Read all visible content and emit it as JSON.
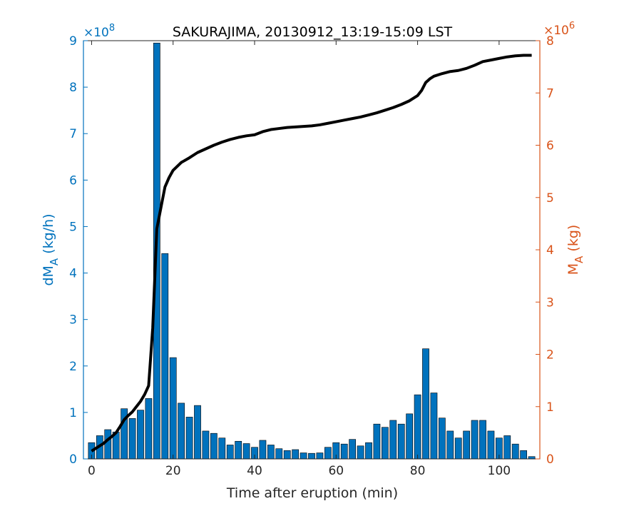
{
  "chart_data": {
    "type": "bar",
    "title": "SAKURAJIMA, 20130912_13:19-15:09 LST",
    "xlabel": "Time after eruption (min)",
    "ylabel_left": "dM_A (kg/h)",
    "ylabel_right": "M_A (kg)",
    "xlim": [
      -2,
      110
    ],
    "xticks": [
      0,
      20,
      40,
      60,
      80,
      100
    ],
    "y_left": {
      "lim": [
        0,
        9
      ],
      "ticks": [
        0,
        1,
        2,
        3,
        4,
        5,
        6,
        7,
        8,
        9
      ],
      "exponent": "8",
      "multiplier_prefix": "×10",
      "color": "#0072BD"
    },
    "y_right": {
      "lim": [
        0,
        8
      ],
      "ticks": [
        0,
        1,
        2,
        3,
        4,
        5,
        6,
        7,
        8
      ],
      "exponent": "6",
      "multiplier_prefix": "×10",
      "color": "#D95319"
    },
    "series": [
      {
        "kind": "bar",
        "axis": "left",
        "color": "#0072BD",
        "edge": "#000000",
        "x": [
          0,
          2,
          4,
          6,
          8,
          10,
          12,
          14,
          16,
          18,
          20,
          22,
          24,
          26,
          28,
          30,
          32,
          34,
          36,
          38,
          40,
          42,
          44,
          46,
          48,
          50,
          52,
          54,
          56,
          58,
          60,
          62,
          64,
          66,
          68,
          70,
          72,
          74,
          76,
          78,
          80,
          82,
          84,
          86,
          88,
          90,
          92,
          94,
          96,
          98,
          100,
          102,
          104,
          106,
          108
        ],
        "values": [
          0.35,
          0.5,
          0.63,
          0.58,
          1.08,
          0.87,
          1.05,
          1.3,
          8.95,
          4.42,
          2.18,
          1.2,
          0.9,
          1.15,
          0.6,
          0.55,
          0.45,
          0.3,
          0.38,
          0.33,
          0.25,
          0.4,
          0.3,
          0.22,
          0.18,
          0.2,
          0.13,
          0.12,
          0.13,
          0.25,
          0.35,
          0.32,
          0.42,
          0.28,
          0.35,
          0.75,
          0.68,
          0.83,
          0.75,
          0.97,
          1.38,
          2.37,
          1.42,
          0.88,
          0.6,
          0.45,
          0.6,
          0.83,
          0.83,
          0.6,
          0.45,
          0.5,
          0.32,
          0.18,
          0.05
        ]
      },
      {
        "kind": "line",
        "axis": "right",
        "color": "#000000",
        "x": [
          0,
          1,
          2,
          3,
          4,
          5,
          6,
          7,
          8,
          9,
          10,
          11,
          12,
          13,
          14,
          15,
          16,
          17,
          18,
          19,
          20,
          22,
          24,
          26,
          28,
          30,
          32,
          34,
          36,
          38,
          40,
          42,
          44,
          46,
          48,
          50,
          52,
          54,
          56,
          58,
          60,
          62,
          64,
          66,
          68,
          70,
          72,
          74,
          76,
          78,
          80,
          81,
          82,
          83,
          84,
          86,
          88,
          90,
          92,
          94,
          96,
          98,
          100,
          102,
          104,
          106,
          108
        ],
        "values": [
          0.15,
          0.2,
          0.25,
          0.3,
          0.37,
          0.43,
          0.5,
          0.62,
          0.75,
          0.83,
          0.9,
          1.0,
          1.1,
          1.23,
          1.4,
          2.5,
          4.4,
          4.8,
          5.2,
          5.38,
          5.52,
          5.67,
          5.76,
          5.86,
          5.93,
          6.0,
          6.06,
          6.11,
          6.15,
          6.18,
          6.2,
          6.26,
          6.3,
          6.32,
          6.34,
          6.35,
          6.36,
          6.37,
          6.39,
          6.42,
          6.45,
          6.48,
          6.51,
          6.54,
          6.58,
          6.62,
          6.67,
          6.72,
          6.78,
          6.85,
          6.95,
          7.05,
          7.2,
          7.27,
          7.32,
          7.37,
          7.41,
          7.43,
          7.47,
          7.53,
          7.6,
          7.63,
          7.66,
          7.69,
          7.71,
          7.72,
          7.72
        ]
      }
    ]
  }
}
